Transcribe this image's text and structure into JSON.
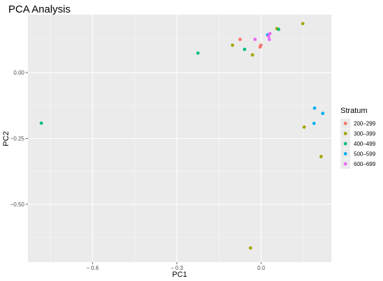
{
  "chart_data": {
    "type": "scatter",
    "title": "PCA Analysis",
    "xlabel": "PC1",
    "ylabel": "PC2",
    "xlim": [
      -0.83,
      0.25
    ],
    "ylim": [
      -0.72,
      0.22
    ],
    "x_ticks": [
      -0.6,
      -0.3,
      0.0
    ],
    "x_tick_labels": [
      "− 0.6",
      "− 0.3",
      "0.0"
    ],
    "y_ticks": [
      0.0,
      -0.25,
      -0.5
    ],
    "y_tick_labels": [
      "0.00",
      "−0.25",
      "−0.50"
    ],
    "grid": true,
    "legend": {
      "title": "Stratum",
      "placement": "right"
    },
    "series": [
      {
        "name": "200–299",
        "color": "#F8766D",
        "points": [
          {
            "x": -0.075,
            "y": 0.126
          },
          {
            "x": -0.004,
            "y": 0.097
          },
          {
            "x": -0.001,
            "y": 0.104
          }
        ]
      },
      {
        "name": "300–399",
        "color": "#A3A500",
        "points": [
          {
            "x": -0.102,
            "y": 0.104
          },
          {
            "x": -0.031,
            "y": 0.067
          },
          {
            "x": 0.056,
            "y": 0.167
          },
          {
            "x": 0.148,
            "y": 0.186
          },
          {
            "x": 0.153,
            "y": -0.207
          },
          {
            "x": 0.213,
            "y": -0.319
          },
          {
            "x": -0.038,
            "y": -0.666
          }
        ]
      },
      {
        "name": "400–499",
        "color": "#00BF7D",
        "points": [
          {
            "x": -0.782,
            "y": -0.192
          },
          {
            "x": -0.225,
            "y": 0.074
          },
          {
            "x": -0.059,
            "y": 0.088
          },
          {
            "x": 0.062,
            "y": 0.164
          }
        ]
      },
      {
        "name": "500–599",
        "color": "#00B0F6",
        "points": [
          {
            "x": 0.023,
            "y": 0.143
          },
          {
            "x": 0.19,
            "y": -0.135
          },
          {
            "x": 0.219,
            "y": -0.155
          },
          {
            "x": 0.188,
            "y": -0.193
          }
        ]
      },
      {
        "name": "600–699",
        "color": "#E76BF3",
        "points": [
          {
            "x": -0.022,
            "y": 0.126
          },
          {
            "x": 0.026,
            "y": 0.138
          },
          {
            "x": 0.031,
            "y": 0.148
          },
          {
            "x": 0.029,
            "y": 0.126
          }
        ]
      }
    ]
  }
}
